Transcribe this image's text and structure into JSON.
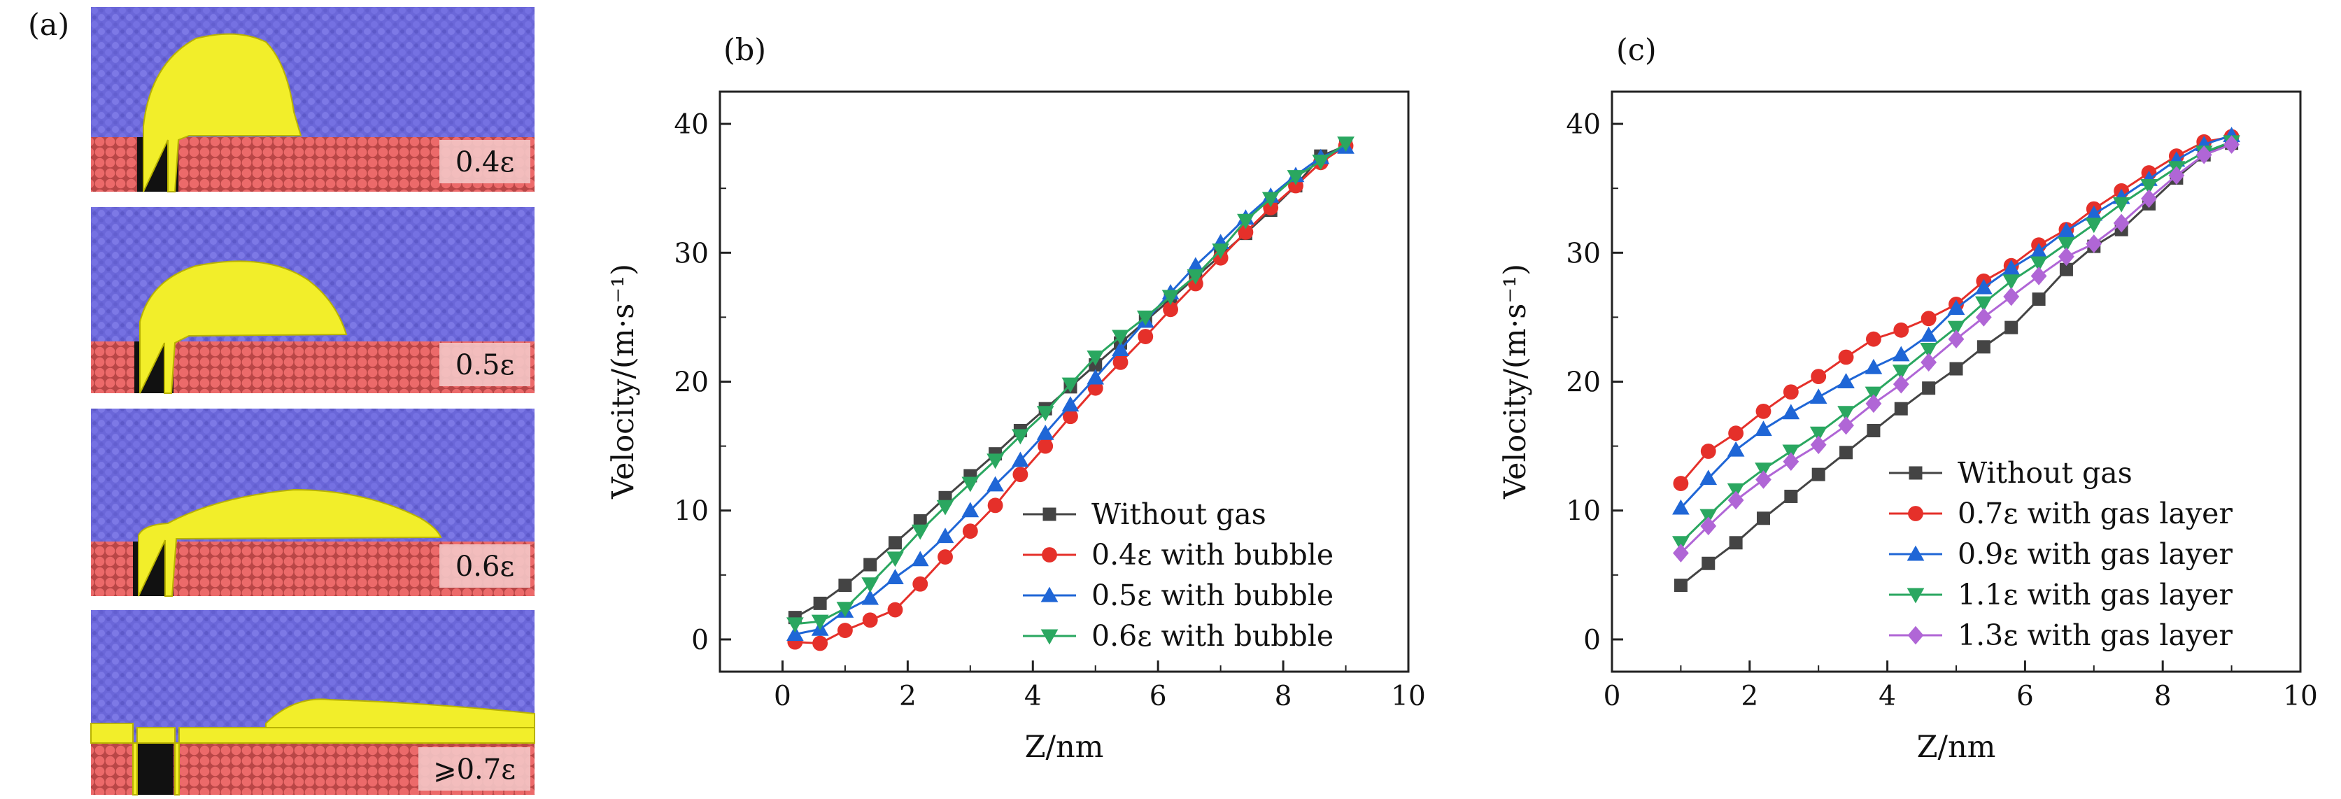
{
  "panels": {
    "a": "(a)",
    "b": "(b)",
    "c": "(c)"
  },
  "simulations": {
    "labels": [
      "0.4ε",
      "0.5ε",
      "0.6ε",
      "⩾0.7ε"
    ],
    "colors": {
      "liquid": "#6b67d9",
      "solid": "#e35e5e",
      "gas": "#f2ee2a"
    }
  },
  "chart_data": [
    {
      "type": "line",
      "panel": "(b)",
      "xlabel": "Z/nm",
      "ylabel": "Velocity/(m·s⁻¹)",
      "xlim": [
        -1,
        10
      ],
      "ylim": [
        -2.5,
        42.5
      ],
      "xticks": [
        0,
        2,
        4,
        6,
        8,
        10
      ],
      "yticks": [
        0,
        10,
        20,
        30,
        40
      ],
      "legend_position": "bottom-right",
      "series": [
        {
          "name": "Without gas",
          "color": "#444444",
          "marker": "square",
          "x": [
            0.2,
            0.6,
            1.0,
            1.4,
            1.8,
            2.2,
            2.6,
            3.0,
            3.4,
            3.8,
            4.2,
            4.6,
            5.0,
            5.4,
            5.8,
            6.2,
            6.6,
            7.0,
            7.4,
            7.8,
            8.2,
            8.6,
            9.0
          ],
          "y": [
            1.7,
            2.8,
            4.2,
            5.8,
            7.5,
            9.2,
            11.0,
            12.7,
            14.4,
            16.2,
            17.9,
            19.6,
            21.3,
            23.0,
            24.7,
            26.4,
            28.1,
            29.8,
            31.5,
            33.3,
            35.2,
            37.5,
            38.3
          ]
        },
        {
          "name": "0.4ε with bubble",
          "color": "#e5302a",
          "marker": "circle",
          "x": [
            0.2,
            0.6,
            1.0,
            1.4,
            1.8,
            2.2,
            2.6,
            3.0,
            3.4,
            3.8,
            4.2,
            4.6,
            5.0,
            5.4,
            5.8,
            6.2,
            6.6,
            7.0,
            7.4,
            7.8,
            8.2,
            8.6,
            9.0
          ],
          "y": [
            -0.2,
            -0.3,
            0.7,
            1.5,
            2.3,
            4.3,
            6.4,
            8.4,
            10.4,
            12.8,
            15.0,
            17.3,
            19.5,
            21.5,
            23.5,
            25.6,
            27.6,
            29.6,
            31.6,
            33.5,
            35.2,
            37.0,
            38.3
          ]
        },
        {
          "name": "0.5ε with bubble",
          "color": "#1f66d6",
          "marker": "triangle-up",
          "x": [
            0.2,
            0.6,
            1.0,
            1.4,
            1.8,
            2.2,
            2.6,
            3.0,
            3.4,
            3.8,
            4.2,
            4.6,
            5.0,
            5.4,
            5.8,
            6.2,
            6.6,
            7.0,
            7.4,
            7.8,
            8.2,
            8.6,
            9.0
          ],
          "y": [
            0.4,
            0.8,
            2.2,
            3.2,
            4.8,
            6.2,
            8.0,
            10.0,
            12.0,
            13.9,
            16.0,
            18.2,
            20.3,
            22.5,
            24.7,
            26.9,
            29.0,
            30.8,
            32.7,
            34.4,
            36.0,
            37.4,
            38.2
          ]
        },
        {
          "name": "0.6ε with bubble",
          "color": "#2aa760",
          "marker": "triangle-down",
          "x": [
            0.2,
            0.6,
            1.0,
            1.4,
            1.8,
            2.2,
            2.6,
            3.0,
            3.4,
            3.8,
            4.2,
            4.6,
            5.0,
            5.4,
            5.8,
            6.2,
            6.6,
            7.0,
            7.4,
            7.8,
            8.2,
            8.6,
            9.0
          ],
          "y": [
            1.2,
            1.4,
            2.4,
            4.3,
            6.3,
            8.4,
            10.3,
            12.1,
            13.9,
            15.8,
            17.6,
            19.8,
            21.9,
            23.5,
            25.0,
            26.6,
            28.2,
            30.2,
            32.5,
            34.2,
            35.9,
            37.1,
            38.5
          ]
        }
      ]
    },
    {
      "type": "line",
      "panel": "(c)",
      "xlabel": "Z/nm",
      "ylabel": "Velocity/(m·s⁻¹)",
      "xlim": [
        0,
        10
      ],
      "ylim": [
        -2.5,
        42.5
      ],
      "xticks": [
        0,
        2,
        4,
        6,
        8,
        10
      ],
      "yticks": [
        0,
        10,
        20,
        30,
        40
      ],
      "legend_position": "bottom-right",
      "series": [
        {
          "name": "Without gas",
          "color": "#444444",
          "marker": "square",
          "x": [
            1.0,
            1.4,
            1.8,
            2.2,
            2.6,
            3.0,
            3.4,
            3.8,
            4.2,
            4.6,
            5.0,
            5.4,
            5.8,
            6.2,
            6.6,
            7.0,
            7.4,
            7.8,
            8.2,
            8.6,
            9.0
          ],
          "y": [
            4.2,
            5.9,
            7.5,
            9.4,
            11.1,
            12.8,
            14.5,
            16.2,
            17.9,
            19.5,
            21.0,
            22.7,
            24.2,
            26.4,
            28.7,
            30.5,
            31.8,
            33.8,
            35.8,
            37.6,
            38.5
          ]
        },
        {
          "name": "0.7ε with gas layer",
          "color": "#e5302a",
          "marker": "circle",
          "x": [
            1.0,
            1.4,
            1.8,
            2.2,
            2.6,
            3.0,
            3.4,
            3.8,
            4.2,
            4.6,
            5.0,
            5.4,
            5.8,
            6.2,
            6.6,
            7.0,
            7.4,
            7.8,
            8.2,
            8.6,
            9.0
          ],
          "y": [
            12.1,
            14.6,
            16.0,
            17.7,
            19.2,
            20.4,
            21.9,
            23.3,
            24.0,
            24.9,
            26.0,
            27.8,
            29.0,
            30.6,
            31.8,
            33.4,
            34.8,
            36.2,
            37.5,
            38.6,
            39.0
          ]
        },
        {
          "name": "0.9ε with gas layer",
          "color": "#1f66d6",
          "marker": "triangle-up",
          "x": [
            1.0,
            1.4,
            1.8,
            2.2,
            2.6,
            3.0,
            3.4,
            3.8,
            4.2,
            4.6,
            5.0,
            5.4,
            5.8,
            6.2,
            6.6,
            7.0,
            7.4,
            7.8,
            8.2,
            8.6,
            9.0
          ],
          "y": [
            10.2,
            12.5,
            14.7,
            16.3,
            17.6,
            18.8,
            20.0,
            21.1,
            22.1,
            23.6,
            25.7,
            27.3,
            28.8,
            30.1,
            31.7,
            33.0,
            34.3,
            35.7,
            37.2,
            38.4,
            39.1
          ]
        },
        {
          "name": "1.1ε with gas layer",
          "color": "#2aa760",
          "marker": "triangle-down",
          "x": [
            1.0,
            1.4,
            1.8,
            2.2,
            2.6,
            3.0,
            3.4,
            3.8,
            4.2,
            4.6,
            5.0,
            5.4,
            5.8,
            6.2,
            6.6,
            7.0,
            7.4,
            7.8,
            8.2,
            8.6,
            9.0
          ],
          "y": [
            7.5,
            9.6,
            11.6,
            13.2,
            14.6,
            16.0,
            17.6,
            19.1,
            20.8,
            22.5,
            24.2,
            26.1,
            27.8,
            29.2,
            30.7,
            32.2,
            33.8,
            35.2,
            36.6,
            37.8,
            38.6
          ]
        },
        {
          "name": "1.3ε with gas layer",
          "color": "#b066d6",
          "marker": "diamond",
          "x": [
            1.0,
            1.4,
            1.8,
            2.2,
            2.6,
            3.0,
            3.4,
            3.8,
            4.2,
            4.6,
            5.0,
            5.4,
            5.8,
            6.2,
            6.6,
            7.0,
            7.4,
            7.8,
            8.2,
            8.6,
            9.0
          ],
          "y": [
            6.7,
            8.8,
            10.8,
            12.4,
            13.8,
            15.1,
            16.6,
            18.3,
            19.8,
            21.5,
            23.3,
            25.0,
            26.6,
            28.2,
            29.7,
            30.7,
            32.3,
            34.2,
            36.0,
            37.6,
            38.4
          ]
        }
      ]
    }
  ]
}
